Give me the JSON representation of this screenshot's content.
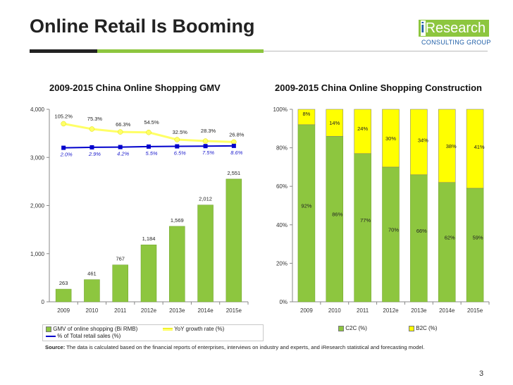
{
  "slide": {
    "title": "Online Retail Is Booming",
    "logo_text_i": "i",
    "logo_text_rest": "Research",
    "logo_sub": "CONSULTING GROUP",
    "source_label": "Source:",
    "source_text": " The data is calculated based on the financial reports of enterprises, interviews on industry and experts, and iResearch statistical and forecasting model.",
    "page_number": "3"
  },
  "colors": {
    "bar_green": "#8dc63f",
    "bar_yellow": "#ffff00",
    "line_yellow": "#ffff66",
    "line_blue": "#0000cc",
    "rule_dark": "#222222"
  },
  "chart_data": [
    {
      "type": "bar",
      "title": "2009-2015 China Online Shopping GMV",
      "categories": [
        "2009",
        "2010",
        "2011",
        "2012e",
        "2013e",
        "2014e",
        "2015e"
      ],
      "ylim": [
        0,
        4000
      ],
      "yticks": [
        "0",
        "1,000",
        "2,000",
        "3,000",
        "4,000"
      ],
      "ytick_values": [
        0,
        1000,
        2000,
        3000,
        4000
      ],
      "grid": false,
      "legend_position": "bottom",
      "series": [
        {
          "name": "GMV of online shopping (Bi RMB)",
          "kind": "bar",
          "values": [
            263,
            461,
            767,
            1184,
            1569,
            2012,
            2551
          ],
          "labels": [
            "263",
            "461",
            "767",
            "1,184",
            "1,569",
            "2,012",
            "2,551"
          ]
        },
        {
          "name": "YoY growth rate (%)",
          "kind": "line",
          "values": [
            105.2,
            75.3,
            66.3,
            54.5,
            32.5,
            28.3,
            26.8
          ],
          "labels": [
            "105.2%",
            "75.3%",
            "66.3%",
            "54.5%",
            "32.5%",
            "28.3%",
            "26.8%"
          ],
          "plotted_y": [
            3700,
            3590,
            3530,
            3520,
            3370,
            3340,
            3320
          ]
        },
        {
          "name": "% of Total retail sales (%)",
          "kind": "line",
          "values": [
            2.0,
            2.9,
            4.2,
            5.5,
            6.5,
            7.5,
            8.6
          ],
          "labels": [
            "2.0%",
            "2.9%",
            "4.2%",
            "5.5%",
            "6.5%",
            "7.5%",
            "8.6%"
          ],
          "plotted_y": [
            3200,
            3210,
            3215,
            3225,
            3230,
            3235,
            3240
          ]
        }
      ]
    },
    {
      "type": "bar",
      "stacked": true,
      "title": "2009-2015 China Online Shopping Construction",
      "categories": [
        "2009",
        "2010",
        "2011",
        "2012e",
        "2013e",
        "2014e",
        "2015e"
      ],
      "ylim": [
        0,
        100
      ],
      "yticks": [
        "0%",
        "20%",
        "40%",
        "60%",
        "80%",
        "100%"
      ],
      "ytick_values": [
        0,
        20,
        40,
        60,
        80,
        100
      ],
      "grid": false,
      "legend_position": "bottom",
      "series": [
        {
          "name": "C2C (%)",
          "values": [
            92,
            86,
            77,
            70,
            66,
            62,
            59
          ],
          "labels": [
            "92%",
            "86%",
            "77%",
            "70%",
            "66%",
            "62%",
            "59%"
          ]
        },
        {
          "name": "B2C (%)",
          "values": [
            8,
            14,
            24,
            30,
            34,
            38,
            41
          ],
          "labels": [
            "8%",
            "14%",
            "24%",
            "30%",
            "34%",
            "38%",
            "41%"
          ]
        }
      ]
    }
  ]
}
